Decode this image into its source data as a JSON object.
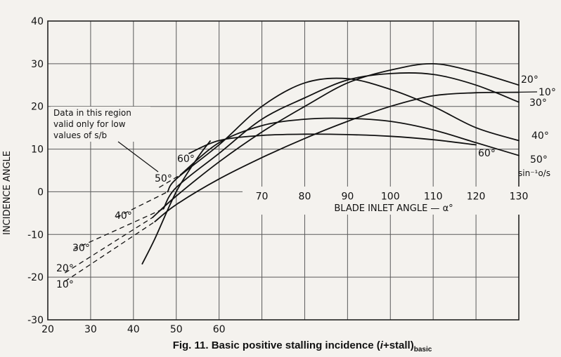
{
  "chart_data": {
    "type": "line",
    "caption_main": "Fig. 11.  Basic positive stalling incidence (",
    "caption_symbol": "i",
    "caption_rest": "+stall)",
    "caption_sub": "basic",
    "ylabel": "INCIDENCE ANGLE",
    "xlabel": "BLADE INLET ANGLE — α°",
    "xlim": [
      20,
      130
    ],
    "ylim": [
      -30,
      40
    ],
    "x_ticks_bottom": [
      20,
      30,
      40,
      50,
      60
    ],
    "x_ticks_inner": [
      70,
      80,
      90,
      100,
      110,
      120,
      130
    ],
    "y_ticks": [
      -30,
      -20,
      -10,
      0,
      10,
      20,
      30,
      40
    ],
    "annotation": [
      "Data in this region",
      "valid only for low",
      "values of s/b"
    ],
    "param_label": "sin⁻¹o/s",
    "series": [
      {
        "name": "10°",
        "points": [
          [
            45,
            -7
          ],
          [
            50,
            -3
          ],
          [
            60,
            3
          ],
          [
            70,
            8
          ],
          [
            80,
            12.5
          ],
          [
            90,
            16.5
          ],
          [
            100,
            20
          ],
          [
            110,
            22.5
          ],
          [
            120,
            23.2
          ],
          [
            130,
            23.3
          ]
        ],
        "dashed": [
          [
            24,
            -21
          ],
          [
            45,
            -7
          ]
        ]
      },
      {
        "name": "20°",
        "points": [
          [
            44.5,
            -6
          ],
          [
            50,
            -1
          ],
          [
            60,
            7
          ],
          [
            70,
            14
          ],
          [
            80,
            20
          ],
          [
            90,
            25.5
          ],
          [
            100,
            28.5
          ],
          [
            110,
            30
          ],
          [
            120,
            28
          ],
          [
            130,
            25
          ]
        ],
        "dashed": [
          [
            24,
            -19
          ],
          [
            44.5,
            -6
          ]
        ]
      },
      {
        "name": "30°",
        "points": [
          [
            47,
            -4
          ],
          [
            50,
            1
          ],
          [
            60,
            9
          ],
          [
            70,
            17
          ],
          [
            80,
            22
          ],
          [
            90,
            26.2
          ],
          [
            100,
            27.7
          ],
          [
            110,
            27.5
          ],
          [
            120,
            25
          ],
          [
            130,
            21
          ]
        ],
        "dashed": [
          [
            26,
            -13.5
          ],
          [
            47,
            -4
          ]
        ]
      },
      {
        "name": "40°",
        "points": [
          [
            48,
            0
          ],
          [
            50,
            3
          ],
          [
            60,
            11
          ],
          [
            70,
            20
          ],
          [
            80,
            25.5
          ],
          [
            90,
            26.5
          ],
          [
            100,
            24
          ],
          [
            110,
            20
          ],
          [
            120,
            15
          ],
          [
            130,
            12
          ]
        ],
        "dashed": [
          [
            36,
            -6
          ],
          [
            48,
            0
          ]
        ]
      },
      {
        "name": "50°",
        "points": [
          [
            51,
            4
          ],
          [
            60,
            11.5
          ],
          [
            70,
            15.5
          ],
          [
            80,
            17
          ],
          [
            90,
            17.2
          ],
          [
            100,
            16.5
          ],
          [
            110,
            14.5
          ],
          [
            120,
            11.5
          ],
          [
            130,
            8.5
          ]
        ],
        "dashed": [
          [
            46,
            1
          ],
          [
            51,
            4
          ]
        ]
      },
      {
        "name": "60°",
        "points": [
          [
            53,
            9
          ],
          [
            60,
            12
          ],
          [
            70,
            13.2
          ],
          [
            80,
            13.5
          ],
          [
            90,
            13.4
          ],
          [
            100,
            13
          ],
          [
            110,
            12.2
          ],
          [
            120,
            11
          ]
        ],
        "dashed": []
      }
    ],
    "boundary": [
      [
        42,
        -17
      ],
      [
        45,
        -11
      ],
      [
        50,
        0
      ],
      [
        55,
        8
      ],
      [
        58,
        12
      ]
    ]
  }
}
